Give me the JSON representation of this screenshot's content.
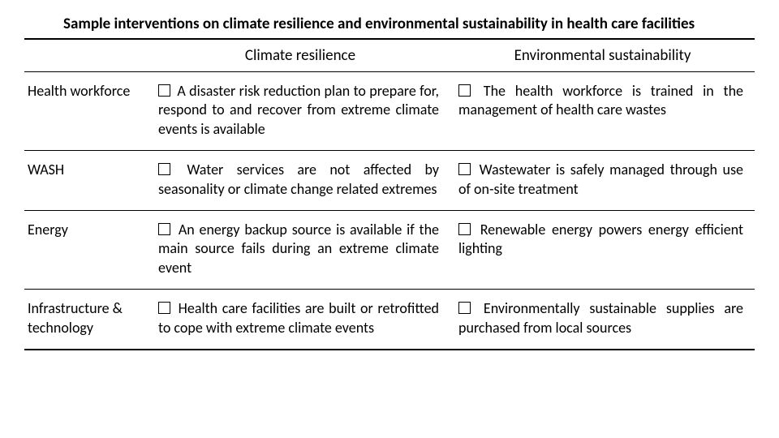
{
  "title": "Sample interventions on climate resilience and environmental sustainability in health care facilities",
  "columns": {
    "a": "Climate resilience",
    "b": "Environmental sustainability"
  },
  "rows": [
    {
      "label": "Health workforce",
      "a": "A disaster risk reduction plan to prepare for, respond to and recover from extreme climate events is available",
      "b": "The health workforce is trained in the management of health care wastes"
    },
    {
      "label": "WASH",
      "a": "Water services are not affected by seasonality or climate change related extremes",
      "b": "Wastewater is safely managed through use of on-site treatment"
    },
    {
      "label": "Energy",
      "a": "An energy backup source is available if the main source fails during an extreme climate event",
      "b": "Renewable energy powers energy efficient lighting"
    },
    {
      "label": "Infrastructure & technology",
      "a": "Health care facilities are built or retrofitted to cope with extreme climate events",
      "b": "Environmentally sustainable supplies are purchased from local sources"
    }
  ],
  "colors": {
    "text": "#000000",
    "background": "#ffffff",
    "rule": "#000000"
  }
}
